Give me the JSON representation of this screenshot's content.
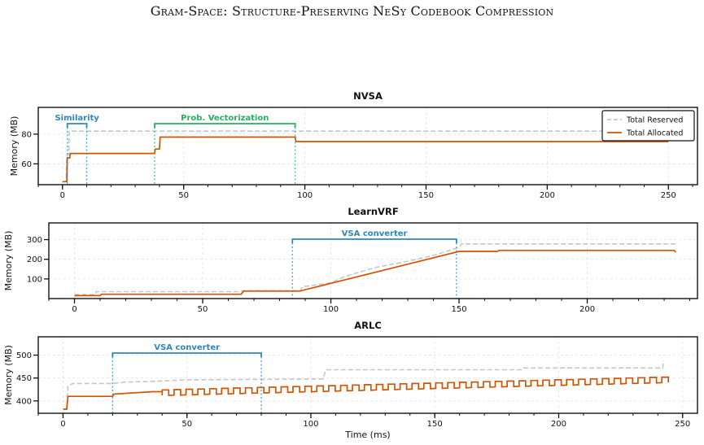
{
  "header": {
    "title": "Gram-Space: Structure-Preserving NeSy Codebook Compression"
  },
  "colors": {
    "reserved": "#bfc8d0",
    "allocated": "#d35400",
    "blue": "#2e86c1",
    "green": "#27ae60",
    "grid": "#e3e3e3"
  },
  "chart_data": [
    {
      "type": "line",
      "title": "NVSA",
      "ylabel": "Memory (MB)",
      "xlabel": "",
      "xlim": [
        -10,
        262
      ],
      "ylim": [
        46,
        98
      ],
      "xticks": [
        0,
        50,
        100,
        150,
        200,
        250
      ],
      "yticks": [
        60,
        80
      ],
      "grid": true,
      "legend": {
        "position": "top-right",
        "entries": [
          "Total Reserved",
          "Total Allocated"
        ]
      },
      "series": [
        {
          "name": "Total Reserved",
          "style": "dashed",
          "points": [
            [
              0,
              48
            ],
            [
              1.5,
              48
            ],
            [
              1.8,
              66
            ],
            [
              2.6,
              66
            ],
            [
              2.8,
              82
            ],
            [
              8,
              82
            ],
            [
              250,
              82
            ]
          ]
        },
        {
          "name": "Total Allocated",
          "style": "solid",
          "points": [
            [
              0,
              48
            ],
            [
              1.8,
              48
            ],
            [
              2,
              64
            ],
            [
              3,
              64
            ],
            [
              3.2,
              67
            ],
            [
              38,
              67
            ],
            [
              38.3,
              70
            ],
            [
              40,
              70
            ],
            [
              40.3,
              78
            ],
            [
              96,
              78
            ],
            [
              96.3,
              75
            ],
            [
              250,
              75
            ]
          ]
        }
      ],
      "annotations": [
        {
          "label": "Similarity",
          "x0": 2,
          "x1": 10,
          "color": "blue"
        },
        {
          "label": "Prob. Vectorization",
          "x0": 38,
          "x1": 96,
          "color": "green"
        }
      ]
    },
    {
      "type": "line",
      "title": "LearnVRF",
      "ylabel": "Memory (MB)",
      "xlabel": "",
      "xlim": [
        -10,
        243
      ],
      "ylim": [
        0,
        385
      ],
      "xticks": [
        0,
        50,
        100,
        150,
        200
      ],
      "yticks": [
        100,
        200,
        300
      ],
      "grid": true,
      "series": [
        {
          "name": "Total Reserved",
          "style": "dashed",
          "points": [
            [
              0,
              20
            ],
            [
              8,
              20
            ],
            [
              8.5,
              35
            ],
            [
              65,
              35
            ],
            [
              65.5,
              40
            ],
            [
              88,
              40
            ],
            [
              89,
              60
            ],
            [
              100,
              80
            ],
            [
              105,
              110
            ],
            [
              110,
              130
            ],
            [
              118,
              160
            ],
            [
              130,
              190
            ],
            [
              140,
              220
            ],
            [
              150,
              260
            ],
            [
              151,
              278
            ],
            [
              235,
              278
            ]
          ]
        },
        {
          "name": "Total Allocated",
          "style": "solid",
          "points": [
            [
              0,
              15
            ],
            [
              10,
              15
            ],
            [
              10.5,
              22
            ],
            [
              65,
              22
            ],
            [
              66,
              38
            ],
            [
              88,
              38
            ],
            [
              90,
              45
            ],
            [
              150,
              240
            ],
            [
              165,
              240
            ],
            [
              165.5,
              245
            ],
            [
              234,
              245
            ],
            [
              234.5,
              235
            ]
          ]
        }
      ],
      "annotations": [
        {
          "label": "VSA converter",
          "x0": 85,
          "x1": 149,
          "color": "blue"
        }
      ]
    },
    {
      "type": "line",
      "title": "ARLC",
      "ylabel": "Memory (MB)",
      "xlabel": "Time (ms)",
      "xlim": [
        -10,
        256
      ],
      "ylim": [
        373,
        540
      ],
      "xticks": [
        0,
        50,
        100,
        150,
        200,
        250
      ],
      "yticks": [
        400,
        450,
        500
      ],
      "grid": true,
      "series": [
        {
          "name": "Total Reserved",
          "style": "dashed",
          "points": [
            [
              0,
              382
            ],
            [
              1.5,
              382
            ],
            [
              2,
              433
            ],
            [
              4,
              438
            ],
            [
              20,
              438
            ],
            [
              25,
              441
            ],
            [
              38,
              443
            ],
            [
              50,
              446
            ],
            [
              80,
              447
            ],
            [
              105,
              448
            ],
            [
              106,
              468
            ],
            [
              185,
              468
            ],
            [
              186,
              472
            ],
            [
              242,
              472
            ],
            [
              242.2,
              488
            ]
          ]
        },
        {
          "name": "Total Allocated",
          "style": "solid",
          "oscillation": {
            "x_start": 40,
            "x_end": 242,
            "period": 4.8,
            "low_start": 412,
            "high_start": 424,
            "low_end": 440,
            "high_end": 452
          },
          "points": [
            [
              0,
              382
            ],
            [
              1.5,
              382
            ],
            [
              2,
              410
            ],
            [
              20,
              410
            ],
            [
              20.5,
              415
            ],
            [
              36,
              420
            ],
            [
              40,
              420
            ]
          ]
        }
      ],
      "annotations": [
        {
          "label": "VSA converter",
          "x0": 20,
          "x1": 80,
          "color": "blue"
        }
      ]
    }
  ]
}
